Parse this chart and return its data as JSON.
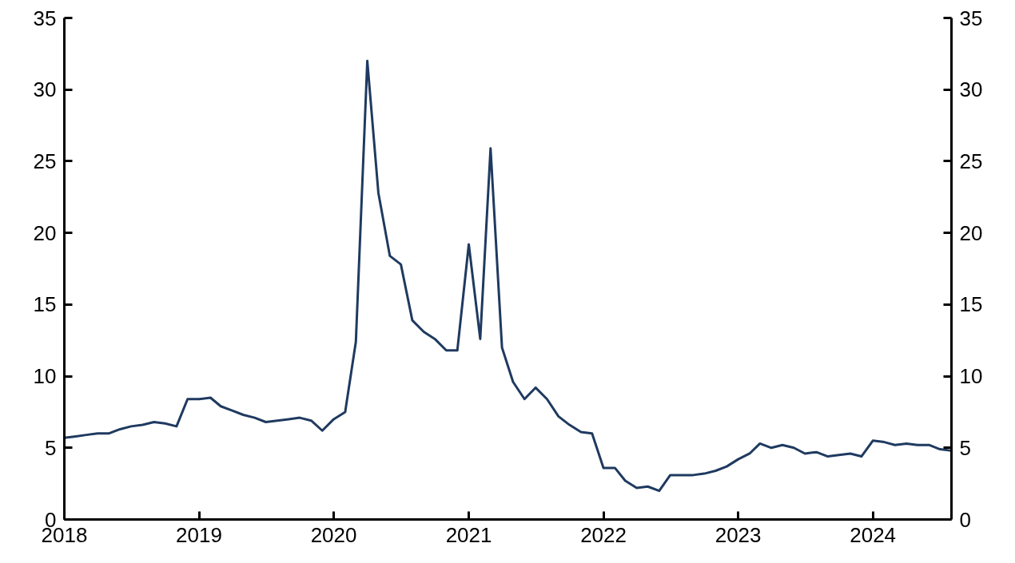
{
  "chart_data": {
    "type": "line",
    "x": [
      "2018-01",
      "2018-02",
      "2018-03",
      "2018-04",
      "2018-05",
      "2018-06",
      "2018-07",
      "2018-08",
      "2018-09",
      "2018-10",
      "2018-11",
      "2018-12",
      "2019-01",
      "2019-02",
      "2019-03",
      "2019-04",
      "2019-05",
      "2019-06",
      "2019-07",
      "2019-08",
      "2019-09",
      "2019-10",
      "2019-11",
      "2019-12",
      "2020-01",
      "2020-02",
      "2020-03",
      "2020-04",
      "2020-05",
      "2020-06",
      "2020-07",
      "2020-08",
      "2020-09",
      "2020-10",
      "2020-11",
      "2020-12",
      "2021-01",
      "2021-02",
      "2021-03",
      "2021-04",
      "2021-05",
      "2021-06",
      "2021-07",
      "2021-08",
      "2021-09",
      "2021-10",
      "2021-11",
      "2021-12",
      "2022-01",
      "2022-02",
      "2022-03",
      "2022-04",
      "2022-05",
      "2022-06",
      "2022-07",
      "2022-08",
      "2022-09",
      "2022-10",
      "2022-11",
      "2022-12",
      "2023-01",
      "2023-02",
      "2023-03",
      "2023-04",
      "2023-05",
      "2023-06",
      "2023-07",
      "2023-08",
      "2023-09",
      "2023-10",
      "2023-11",
      "2023-12",
      "2024-01",
      "2024-02",
      "2024-03",
      "2024-04",
      "2024-05",
      "2024-06",
      "2024-07",
      "2024-08"
    ],
    "series": [
      {
        "color": "#1f3a60",
        "values": [
          5.7,
          5.8,
          5.9,
          6.0,
          6.0,
          6.3,
          6.5,
          6.6,
          6.8,
          6.7,
          6.5,
          8.4,
          8.4,
          8.5,
          7.9,
          7.6,
          7.3,
          7.1,
          6.8,
          6.9,
          7.0,
          7.1,
          6.9,
          6.2,
          7.0,
          7.5,
          12.4,
          32.0,
          22.8,
          18.4,
          17.8,
          13.9,
          13.1,
          12.6,
          11.8,
          11.8,
          19.2,
          12.6,
          25.9,
          12.0,
          9.6,
          8.4,
          9.2,
          8.4,
          7.2,
          6.6,
          6.1,
          6.0,
          3.6,
          3.6,
          2.7,
          2.2,
          2.3,
          2.0,
          3.1,
          3.1,
          3.1,
          3.2,
          3.4,
          3.7,
          4.2,
          4.6,
          5.3,
          5.0,
          5.2,
          5.0,
          4.6,
          4.7,
          4.4,
          4.5,
          4.6,
          4.4,
          5.5,
          5.4,
          5.2,
          5.3,
          5.2,
          5.2,
          4.9,
          4.8
        ]
      }
    ],
    "xlim": [
      "2018-01",
      "2024-08"
    ],
    "xticks": [
      "2018",
      "2019",
      "2020",
      "2021",
      "2022",
      "2023",
      "2024"
    ],
    "ylim": [
      0,
      35
    ],
    "yticks": [
      0,
      5,
      10,
      15,
      20,
      25,
      30,
      35
    ],
    "y2lim": [
      0,
      35
    ],
    "y2ticks": [
      0,
      5,
      10,
      15,
      20,
      25,
      30,
      35
    ],
    "grid": false,
    "marker": "none",
    "line_style": "solid"
  }
}
